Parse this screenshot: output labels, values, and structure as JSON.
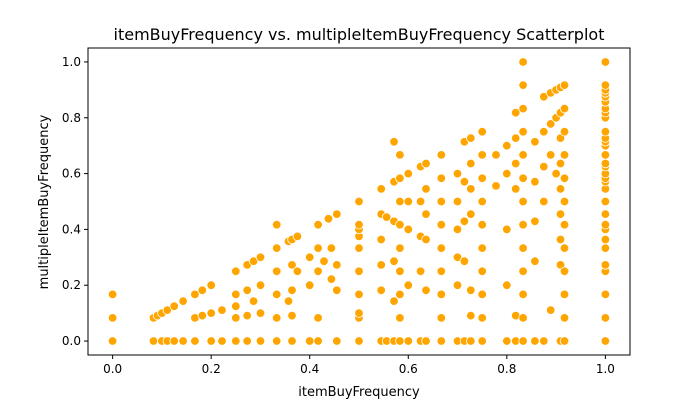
{
  "chart_data": {
    "type": "scatter",
    "title": "itemBuyFrequency vs. multipleItemBuyFrequency Scatterplot",
    "xlabel": "itemBuyFrequency",
    "ylabel": "multipleItemBuyFrequency",
    "xlim": [
      -0.05,
      1.05
    ],
    "ylim": [
      -0.05,
      1.05
    ],
    "xticks": [
      0.0,
      0.2,
      0.4,
      0.6,
      0.8,
      1.0
    ],
    "xtick_labels": [
      "0.0",
      "0.2",
      "0.4",
      "0.6",
      "0.8",
      "1.0"
    ],
    "yticks": [
      0.0,
      0.2,
      0.4,
      0.6,
      0.8,
      1.0
    ],
    "ytick_labels": [
      "0.0",
      "0.2",
      "0.4",
      "0.6",
      "0.8",
      "1.0"
    ],
    "grid": false,
    "color": "#ffa500",
    "points": [
      [
        0,
        0
      ],
      [
        0,
        0.083
      ],
      [
        0,
        0.167
      ],
      [
        0.083,
        0
      ],
      [
        0.083,
        0.083
      ],
      [
        0.091,
        0.091
      ],
      [
        0.1,
        0
      ],
      [
        0.1,
        0.1
      ],
      [
        0.111,
        0
      ],
      [
        0.111,
        0.111
      ],
      [
        0.125,
        0
      ],
      [
        0.125,
        0.125
      ],
      [
        0.143,
        0
      ],
      [
        0.143,
        0.143
      ],
      [
        0.167,
        0
      ],
      [
        0.167,
        0.083
      ],
      [
        0.167,
        0.167
      ],
      [
        0.182,
        0.091
      ],
      [
        0.182,
        0.182
      ],
      [
        0.2,
        0
      ],
      [
        0.2,
        0.1
      ],
      [
        0.2,
        0.2
      ],
      [
        0.222,
        0
      ],
      [
        0.222,
        0.111
      ],
      [
        0.25,
        0
      ],
      [
        0.25,
        0.083
      ],
      [
        0.25,
        0.125
      ],
      [
        0.25,
        0.167
      ],
      [
        0.25,
        0.25
      ],
      [
        0.273,
        0
      ],
      [
        0.273,
        0.091
      ],
      [
        0.273,
        0.182
      ],
      [
        0.273,
        0.273
      ],
      [
        0.286,
        0.143
      ],
      [
        0.286,
        0.286
      ],
      [
        0.3,
        0
      ],
      [
        0.3,
        0.1
      ],
      [
        0.3,
        0.2
      ],
      [
        0.3,
        0.3
      ],
      [
        0.333,
        0
      ],
      [
        0.333,
        0.083
      ],
      [
        0.333,
        0.167
      ],
      [
        0.333,
        0.25
      ],
      [
        0.333,
        0.333
      ],
      [
        0.333,
        0.417
      ],
      [
        0.357,
        0.143
      ],
      [
        0.357,
        0.357
      ],
      [
        0.364,
        0
      ],
      [
        0.364,
        0.091
      ],
      [
        0.364,
        0.182
      ],
      [
        0.364,
        0.273
      ],
      [
        0.364,
        0.364
      ],
      [
        0.375,
        0.25
      ],
      [
        0.375,
        0.375
      ],
      [
        0.4,
        0
      ],
      [
        0.4,
        0.2
      ],
      [
        0.4,
        0.3
      ],
      [
        0.417,
        0
      ],
      [
        0.417,
        0.083
      ],
      [
        0.417,
        0.25
      ],
      [
        0.417,
        0.333
      ],
      [
        0.417,
        0.417
      ],
      [
        0.429,
        0.286
      ],
      [
        0.438,
        0.438
      ],
      [
        0.444,
        0.222
      ],
      [
        0.444,
        0.333
      ],
      [
        0.455,
        0
      ],
      [
        0.455,
        0.182
      ],
      [
        0.455,
        0.273
      ],
      [
        0.455,
        0.455
      ],
      [
        0.5,
        0
      ],
      [
        0.5,
        0.083
      ],
      [
        0.5,
        0.1
      ],
      [
        0.5,
        0.167
      ],
      [
        0.5,
        0.25
      ],
      [
        0.5,
        0.333
      ],
      [
        0.5,
        0.375
      ],
      [
        0.5,
        0.4
      ],
      [
        0.5,
        0.417
      ],
      [
        0.5,
        0.5
      ],
      [
        0.545,
        0
      ],
      [
        0.545,
        0.182
      ],
      [
        0.545,
        0.273
      ],
      [
        0.545,
        0.364
      ],
      [
        0.545,
        0.455
      ],
      [
        0.545,
        0.545
      ],
      [
        0.556,
        0
      ],
      [
        0.556,
        0.444
      ],
      [
        0.571,
        0
      ],
      [
        0.571,
        0.143
      ],
      [
        0.571,
        0.286
      ],
      [
        0.571,
        0.429
      ],
      [
        0.571,
        0.571
      ],
      [
        0.571,
        0.714
      ],
      [
        0.583,
        0
      ],
      [
        0.583,
        0.083
      ],
      [
        0.583,
        0.167
      ],
      [
        0.583,
        0.25
      ],
      [
        0.583,
        0.333
      ],
      [
        0.583,
        0.417
      ],
      [
        0.583,
        0.5
      ],
      [
        0.583,
        0.583
      ],
      [
        0.583,
        0.667
      ],
      [
        0.6,
        0
      ],
      [
        0.6,
        0.2
      ],
      [
        0.6,
        0.4
      ],
      [
        0.6,
        0.5
      ],
      [
        0.6,
        0.6
      ],
      [
        0.625,
        0
      ],
      [
        0.625,
        0.25
      ],
      [
        0.625,
        0.375
      ],
      [
        0.625,
        0.5
      ],
      [
        0.625,
        0.625
      ],
      [
        0.636,
        0
      ],
      [
        0.636,
        0.182
      ],
      [
        0.636,
        0.364
      ],
      [
        0.636,
        0.455
      ],
      [
        0.636,
        0.545
      ],
      [
        0.636,
        0.636
      ],
      [
        0.667,
        0
      ],
      [
        0.667,
        0.083
      ],
      [
        0.667,
        0.167
      ],
      [
        0.667,
        0.25
      ],
      [
        0.667,
        0.333
      ],
      [
        0.667,
        0.417
      ],
      [
        0.667,
        0.5
      ],
      [
        0.667,
        0.583
      ],
      [
        0.667,
        0.667
      ],
      [
        0.7,
        0
      ],
      [
        0.7,
        0.2
      ],
      [
        0.7,
        0.3
      ],
      [
        0.7,
        0.4
      ],
      [
        0.7,
        0.5
      ],
      [
        0.7,
        0.6
      ],
      [
        0.714,
        0
      ],
      [
        0.714,
        0.286
      ],
      [
        0.714,
        0.429
      ],
      [
        0.714,
        0.571
      ],
      [
        0.714,
        0.714
      ],
      [
        0.727,
        0
      ],
      [
        0.727,
        0.091
      ],
      [
        0.727,
        0.182
      ],
      [
        0.727,
        0.455
      ],
      [
        0.727,
        0.545
      ],
      [
        0.727,
        0.636
      ],
      [
        0.727,
        0.727
      ],
      [
        0.75,
        0
      ],
      [
        0.75,
        0.083
      ],
      [
        0.75,
        0.167
      ],
      [
        0.75,
        0.25
      ],
      [
        0.75,
        0.333
      ],
      [
        0.75,
        0.417
      ],
      [
        0.75,
        0.5
      ],
      [
        0.75,
        0.583
      ],
      [
        0.75,
        0.667
      ],
      [
        0.75,
        0.75
      ],
      [
        0.778,
        0.556
      ],
      [
        0.778,
        0.667
      ],
      [
        0.8,
        0
      ],
      [
        0.8,
        0.2
      ],
      [
        0.8,
        0.4
      ],
      [
        0.8,
        0.6
      ],
      [
        0.8,
        0.7
      ],
      [
        0.818,
        0
      ],
      [
        0.818,
        0.091
      ],
      [
        0.818,
        0.545
      ],
      [
        0.818,
        0.636
      ],
      [
        0.818,
        0.727
      ],
      [
        0.818,
        0.818
      ],
      [
        0.833,
        0
      ],
      [
        0.833,
        0.083
      ],
      [
        0.833,
        0.167
      ],
      [
        0.833,
        0.25
      ],
      [
        0.833,
        0.333
      ],
      [
        0.833,
        0.417
      ],
      [
        0.833,
        0.5
      ],
      [
        0.833,
        0.583
      ],
      [
        0.833,
        0.667
      ],
      [
        0.833,
        0.75
      ],
      [
        0.833,
        0.833
      ],
      [
        0.833,
        0.917
      ],
      [
        0.833,
        1.0
      ],
      [
        0.857,
        0
      ],
      [
        0.857,
        0.286
      ],
      [
        0.857,
        0.429
      ],
      [
        0.857,
        0.571
      ],
      [
        0.857,
        0.714
      ],
      [
        0.875,
        0
      ],
      [
        0.875,
        0.5
      ],
      [
        0.875,
        0.625
      ],
      [
        0.875,
        0.75
      ],
      [
        0.875,
        0.875
      ],
      [
        0.889,
        0.111
      ],
      [
        0.889,
        0.667
      ],
      [
        0.889,
        0.778
      ],
      [
        0.889,
        0.889
      ],
      [
        0.9,
        0.6
      ],
      [
        0.9,
        0.8
      ],
      [
        0.9,
        0.9
      ],
      [
        0.909,
        0
      ],
      [
        0.909,
        0.273
      ],
      [
        0.909,
        0.364
      ],
      [
        0.909,
        0.455
      ],
      [
        0.909,
        0.545
      ],
      [
        0.909,
        0.636
      ],
      [
        0.909,
        0.727
      ],
      [
        0.909,
        0.818
      ],
      [
        0.909,
        0.909
      ],
      [
        0.917,
        0
      ],
      [
        0.917,
        0.083
      ],
      [
        0.917,
        0.167
      ],
      [
        0.917,
        0.25
      ],
      [
        0.917,
        0.333
      ],
      [
        0.917,
        0.417
      ],
      [
        0.917,
        0.5
      ],
      [
        0.917,
        0.583
      ],
      [
        0.917,
        0.667
      ],
      [
        0.917,
        0.75
      ],
      [
        0.917,
        0.833
      ],
      [
        0.917,
        0.917
      ],
      [
        1.0,
        0
      ],
      [
        1.0,
        0.083
      ],
      [
        1.0,
        0.167
      ],
      [
        1.0,
        0.25
      ],
      [
        1.0,
        0.273
      ],
      [
        1.0,
        0.333
      ],
      [
        1.0,
        0.364
      ],
      [
        1.0,
        0.4
      ],
      [
        1.0,
        0.417
      ],
      [
        1.0,
        0.455
      ],
      [
        1.0,
        0.5
      ],
      [
        1.0,
        0.545
      ],
      [
        1.0,
        0.571
      ],
      [
        1.0,
        0.583
      ],
      [
        1.0,
        0.6
      ],
      [
        1.0,
        0.625
      ],
      [
        1.0,
        0.636
      ],
      [
        1.0,
        0.667
      ],
      [
        1.0,
        0.7
      ],
      [
        1.0,
        0.714
      ],
      [
        1.0,
        0.727
      ],
      [
        1.0,
        0.75
      ],
      [
        1.0,
        0.8
      ],
      [
        1.0,
        0.818
      ],
      [
        1.0,
        0.833
      ],
      [
        1.0,
        0.857
      ],
      [
        1.0,
        0.875
      ],
      [
        1.0,
        0.889
      ],
      [
        1.0,
        0.9
      ],
      [
        1.0,
        0.917
      ],
      [
        1.0,
        1.0
      ]
    ]
  }
}
